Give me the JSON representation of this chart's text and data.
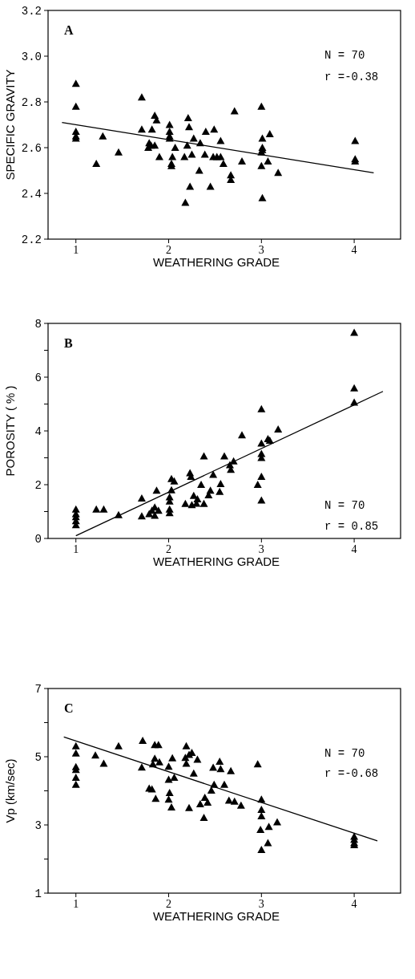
{
  "chart_data": [
    {
      "type": "scatter",
      "xlabel": "WEATHERING GRADE",
      "ylabel": "SPECIFIC GRAVITY",
      "xlim": [
        0.7,
        4.5
      ],
      "xticks": [
        1,
        2,
        3,
        4
      ],
      "ylim": [
        2.2,
        3.2
      ],
      "yticks": [
        {
          "value": 2.2,
          "label": "2.2"
        },
        {
          "value": 2.4,
          "label": "2.4"
        },
        {
          "value": 2.6,
          "label": "2.6"
        },
        {
          "value": 2.8,
          "label": "2.8"
        },
        {
          "value": 3.0,
          "label": "3.0"
        },
        {
          "value": 3.2,
          "label": "3.2"
        }
      ],
      "annotations": [
        "A",
        "N = 70",
        "r =-0.38"
      ],
      "series": [
        {
          "type": "scatter",
          "marker": "triangle",
          "color": "#000000",
          "x": [
            1,
            1,
            1,
            1,
            1,
            1.22,
            1.29,
            1.46,
            1.71,
            1.71,
            1.82,
            1.78,
            1.81,
            1.85,
            1.85,
            1.87,
            1.9,
            2.01,
            2.01,
            2.01,
            2.01,
            2.03,
            2.03,
            2.07,
            2.17,
            2.18,
            2.21,
            2.22,
            2.2,
            2.25,
            2.23,
            2.27,
            2.34,
            2.33,
            2.39,
            2.4,
            2.49,
            2.45,
            2.48,
            2.56,
            2.56,
            2.59,
            2.67,
            2.67,
            2.71,
            2.79,
            3,
            3.01,
            3.01,
            3.01,
            3,
            3,
            3.01,
            3.07,
            3.09,
            3.18,
            4.01,
            4.01,
            4.01,
            1.79,
            2.04,
            2.52
          ],
          "values": [
            2.88,
            2.78,
            2.67,
            2.65,
            2.64,
            2.53,
            2.65,
            2.58,
            2.82,
            2.68,
            2.68,
            2.6,
            2.61,
            2.61,
            2.74,
            2.72,
            2.56,
            2.7,
            2.67,
            2.65,
            2.64,
            2.53,
            2.52,
            2.6,
            2.56,
            2.36,
            2.73,
            2.69,
            2.61,
            2.57,
            2.43,
            2.64,
            2.62,
            2.5,
            2.57,
            2.67,
            2.68,
            2.43,
            2.56,
            2.56,
            2.63,
            2.53,
            2.48,
            2.46,
            2.76,
            2.54,
            2.78,
            2.64,
            2.6,
            2.59,
            2.58,
            2.52,
            2.38,
            2.54,
            2.66,
            2.49,
            2.63,
            2.55,
            2.54,
            2.62,
            2.56,
            2.56
          ]
        },
        {
          "type": "line",
          "marker": "none",
          "line_style": "solid",
          "color": "#000000",
          "x": [
            0.85,
            4.21
          ],
          "values": [
            2.71,
            2.49
          ]
        }
      ]
    },
    {
      "type": "scatter",
      "xlabel": "WEATHERING GRADE",
      "ylabel": "POROSITY ( % )",
      "xlim": [
        0.7,
        4.5
      ],
      "xticks": [
        1,
        2,
        3,
        4
      ],
      "ylim": [
        0,
        8
      ],
      "yticks": [
        0,
        {
          "value": 1,
          "label": null
        },
        2,
        {
          "value": 3,
          "label": null
        },
        4,
        {
          "value": 5,
          "label": null
        },
        6,
        {
          "value": 7,
          "label": null
        },
        8
      ],
      "annotations": [
        "B",
        "N = 70",
        "r = 0.85"
      ],
      "series": [
        {
          "type": "scatter",
          "marker": "triangle",
          "color": "#000000",
          "x": [
            4,
            4,
            4,
            3,
            3.18,
            2.79,
            3,
            3.07,
            3.09,
            3,
            3,
            3,
            2.96,
            3,
            2.38,
            2.6,
            2.7,
            2.66,
            2.67,
            2.48,
            2.23,
            2.24,
            2.03,
            2.06,
            1.87,
            1.71,
            2.35,
            2.56,
            2.55,
            2.45,
            2.43,
            2.38,
            2.31,
            2.27,
            2.18,
            2.03,
            2.01,
            2.01,
            2.01,
            2.01,
            1.85,
            1.82,
            1.89,
            1.79,
            1.71,
            1.46,
            1.22,
            1.3,
            1,
            1,
            1,
            1,
            1,
            1.85,
            2.25,
            2.3
          ],
          "values": [
            7.66,
            5.59,
            5.06,
            4.81,
            4.06,
            3.84,
            3.54,
            3.7,
            3.64,
            3.15,
            3,
            2.3,
            2,
            1.42,
            3.06,
            3.06,
            2.87,
            2.73,
            2.56,
            2.37,
            2.43,
            2.3,
            2.22,
            2.13,
            1.78,
            1.49,
            2,
            2.03,
            1.74,
            1.78,
            1.61,
            1.29,
            1.46,
            1.59,
            1.29,
            1.8,
            1.54,
            1.38,
            1.08,
            0.95,
            1.16,
            1.04,
            1.04,
            0.91,
            0.83,
            0.87,
            1.08,
            1.08,
            1.08,
            0.91,
            0.8,
            0.65,
            0.5,
            0.85,
            1.25,
            1.3
          ]
        },
        {
          "type": "line",
          "marker": "none",
          "line_style": "solid",
          "color": "#000000",
          "x": [
            1,
            4.31
          ],
          "values": [
            0.1,
            5.47
          ]
        }
      ]
    },
    {
      "type": "scatter",
      "xlabel": "WEATHERING GRADE",
      "ylabel": "Vp   (km/sec)",
      "xlim": [
        0.7,
        4.5
      ],
      "xticks": [
        1,
        2,
        3,
        4
      ],
      "ylim": [
        1,
        7
      ],
      "yticks": [
        1,
        {
          "value": 2,
          "label": null
        },
        3,
        {
          "value": 4,
          "label": null
        },
        5,
        {
          "value": 6,
          "label": null
        },
        7
      ],
      "annotations": [
        "C",
        "N = 70",
        "r =-0.68"
      ],
      "series": [
        {
          "type": "scatter",
          "marker": "triangle",
          "color": "#000000",
          "x": [
            1,
            1,
            1,
            1,
            1,
            1,
            1.21,
            1.3,
            1.46,
            1.72,
            1.71,
            1.85,
            1.89,
            1.85,
            1.9,
            1.83,
            2.04,
            2,
            2,
            2.06,
            1.79,
            1.82,
            1.86,
            2.01,
            2,
            2.03,
            2.19,
            2.18,
            2.22,
            2.25,
            2.19,
            2.31,
            2.27,
            2.22,
            2.34,
            2.39,
            2.42,
            2.38,
            2.46,
            2.49,
            2.48,
            2.55,
            2.56,
            2.6,
            2.67,
            2.65,
            2.71,
            2.78,
            2.96,
            3,
            3,
            3,
            2.99,
            3.08,
            3.17,
            3.07,
            3,
            4,
            4,
            4,
            4
          ],
          "values": [
            5.31,
            5.1,
            4.7,
            4.62,
            4.39,
            4.18,
            5.04,
            4.8,
            5.31,
            5.47,
            4.69,
            5.35,
            5.35,
            4.95,
            4.84,
            4.78,
            4.96,
            4.71,
            4.33,
            4.39,
            4.07,
            4.05,
            3.77,
            3.94,
            3.75,
            3.52,
            5.31,
            4.97,
            5.06,
            5.12,
            4.8,
            4.92,
            4.51,
            3.5,
            3.61,
            3.8,
            3.66,
            3.21,
            4.01,
            4.18,
            4.68,
            4.86,
            4.64,
            4.18,
            4.58,
            3.72,
            3.69,
            3.57,
            4.78,
            3.75,
            3.45,
            3.26,
            2.86,
            2.95,
            3.08,
            2.47,
            2.27,
            2.66,
            2.57,
            2.47,
            2.41
          ]
        },
        {
          "type": "line",
          "marker": "none",
          "line_style": "solid",
          "color": "#000000",
          "x": [
            0.87,
            4.25
          ],
          "values": [
            5.58,
            2.53
          ]
        }
      ]
    }
  ]
}
